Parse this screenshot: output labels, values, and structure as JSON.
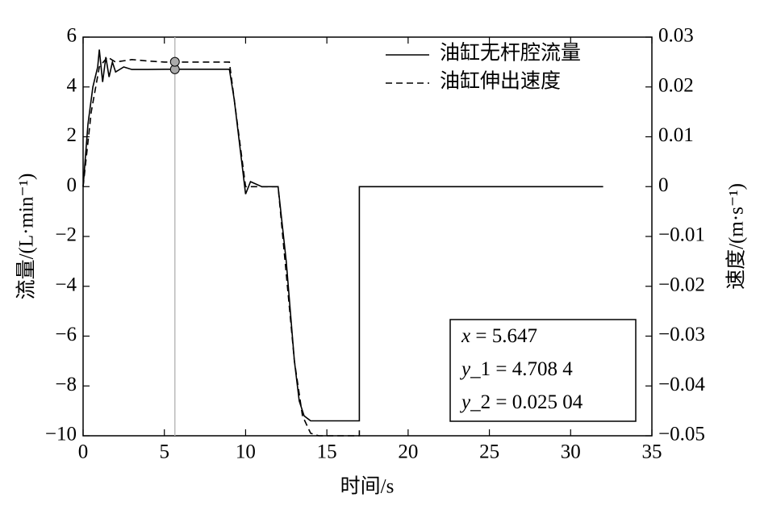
{
  "chart_data": {
    "type": "line",
    "xlabel": "时间/s",
    "ylabel": "流量/(L·min⁻¹)",
    "y2label": "速度/(m·s⁻¹)",
    "xlim": [
      0,
      35
    ],
    "xticks": [
      0,
      5,
      10,
      15,
      20,
      25,
      30,
      35
    ],
    "ylim": [
      -10,
      6
    ],
    "yticks": [
      {
        "value": -10,
        "label": "−10"
      },
      {
        "value": -8,
        "label": "−8"
      },
      {
        "value": -6,
        "label": "−6"
      },
      {
        "value": -4,
        "label": "−4"
      },
      {
        "value": -2,
        "label": "−2"
      },
      0,
      2,
      4,
      6
    ],
    "y2lim": [
      -0.05,
      0.03
    ],
    "y2ticks": [
      {
        "value": -0.05,
        "label": "−0.05"
      },
      {
        "value": -0.04,
        "label": "−0.04"
      },
      {
        "value": -0.03,
        "label": "−0.03"
      },
      {
        "value": -0.02,
        "label": "−0.02"
      },
      {
        "value": -0.01,
        "label": "−0.01"
      },
      0,
      0.01,
      0.02,
      0.03
    ],
    "legend": "upper right",
    "series": [
      {
        "name": "油缸无杆腔流量",
        "color": "#000000",
        "dash": "solid",
        "x": [
          0,
          0.3,
          0.6,
          0.9,
          1.0,
          1.2,
          1.4,
          1.6,
          1.8,
          2.0,
          2.5,
          3,
          4,
          5,
          9,
          9.3,
          10,
          10.3,
          11,
          12,
          12.5,
          13,
          13.3,
          13.6,
          14,
          15,
          17,
          17,
          32
        ],
        "values": [
          0,
          2.5,
          4.0,
          4.8,
          5.5,
          4.2,
          5.2,
          4.4,
          5.0,
          4.6,
          4.8,
          4.7,
          4.7,
          4.71,
          4.71,
          3.5,
          -0.3,
          0.2,
          0,
          0,
          -3,
          -7,
          -8.6,
          -9.2,
          -9.4,
          -9.4,
          -9.4,
          0,
          0
        ]
      },
      {
        "name": "油缸伸出速度",
        "color": "#000000",
        "dash": "dashed",
        "axis": "y2",
        "x": [
          0,
          0.5,
          1,
          1.5,
          2,
          3,
          4,
          5,
          9,
          10,
          12,
          13,
          13.5,
          14,
          14.5,
          15,
          17,
          17
        ],
        "values": [
          0,
          0.015,
          0.024,
          0.026,
          0.025,
          0.0255,
          0.0252,
          0.025,
          0.025,
          0,
          0,
          -0.035,
          -0.046,
          -0.0495,
          -0.05,
          -0.05,
          -0.05,
          -0.0485
        ]
      }
    ],
    "cursor": {
      "x": 5.647,
      "y1": 4.7084,
      "y2": 0.02504,
      "readout": [
        {
          "name": "x",
          "text": " = 5.647"
        },
        {
          "name": "y",
          "text": "_1 = 4.708 4"
        },
        {
          "name": "y",
          "text": "_2 = 0.025 04"
        }
      ]
    }
  }
}
